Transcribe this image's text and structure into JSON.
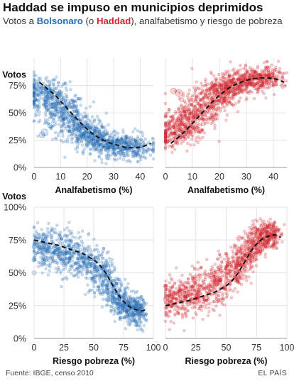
{
  "title": "Haddad se impuso en municipios deprimidos",
  "subtitle": {
    "prefix": "Votos a ",
    "bolsonaro": "Bolsonaro",
    "middle": " (o ",
    "haddad": "Haddad",
    "suffix": "), analfabetismo y riesgo de pobreza"
  },
  "footer": {
    "source": "Fuente: IBGE, censo 2010",
    "brand": "EL PAÍS"
  },
  "colors": {
    "bolsonaro": "#2a6fb5",
    "haddad": "#d1262e",
    "trend": "#111111",
    "grid": "#e4e4e4"
  },
  "chart_data": [
    {
      "type": "scatter",
      "candidate": "bolsonaro",
      "xlabel": "Analfabetismo (%)",
      "ylabel": "Votos",
      "xlim": [
        0,
        45
      ],
      "ylim": [
        0,
        100
      ],
      "xticks": [
        0,
        10,
        20,
        30,
        40
      ],
      "yticks": [
        0,
        25,
        50,
        75
      ],
      "yticklabels": [
        "0%",
        "25%",
        "50%",
        "75%"
      ],
      "trend": [
        [
          2,
          78
        ],
        [
          5,
          72
        ],
        [
          8,
          66
        ],
        [
          11,
          58
        ],
        [
          14,
          50
        ],
        [
          17,
          42
        ],
        [
          20,
          35
        ],
        [
          23,
          29
        ],
        [
          26,
          25
        ],
        [
          29,
          22
        ],
        [
          32,
          20
        ],
        [
          35,
          18
        ],
        [
          38,
          18
        ],
        [
          41,
          19
        ],
        [
          44,
          22
        ]
      ],
      "cloud": [
        [
          2,
          70,
          6,
          10
        ],
        [
          5,
          65,
          7,
          11
        ],
        [
          8,
          58,
          7,
          12
        ],
        [
          11,
          50,
          7,
          12
        ],
        [
          14,
          43,
          7,
          12
        ],
        [
          17,
          36,
          6,
          11
        ],
        [
          20,
          30,
          5,
          10
        ],
        [
          23,
          26,
          5,
          9
        ],
        [
          27,
          22,
          5,
          8
        ],
        [
          31,
          20,
          5,
          8
        ],
        [
          35,
          19,
          6,
          8
        ],
        [
          39,
          18,
          6,
          8
        ]
      ],
      "outliers": [
        [
          4,
          32,
          5
        ],
        [
          3,
          30,
          4
        ],
        [
          14,
          60,
          3
        ],
        [
          6,
          38,
          3
        ]
      ]
    },
    {
      "type": "scatter",
      "candidate": "haddad",
      "xlabel": "Analfabetismo (%)",
      "ylabel": "",
      "xlim": [
        0,
        45
      ],
      "ylim": [
        0,
        100
      ],
      "xticks": [
        0,
        10,
        20,
        30,
        40
      ],
      "yticks": [
        0,
        25,
        50,
        75
      ],
      "yticklabels": [
        "",
        "",
        "",
        ""
      ],
      "trend": [
        [
          2,
          22
        ],
        [
          5,
          28
        ],
        [
          8,
          35
        ],
        [
          11,
          43
        ],
        [
          14,
          51
        ],
        [
          17,
          59
        ],
        [
          20,
          66
        ],
        [
          23,
          72
        ],
        [
          26,
          76
        ],
        [
          29,
          79
        ],
        [
          32,
          81
        ],
        [
          35,
          82
        ],
        [
          38,
          82
        ],
        [
          41,
          81
        ],
        [
          44,
          78
        ]
      ],
      "cloud": [
        [
          2,
          30,
          6,
          10
        ],
        [
          5,
          35,
          7,
          11
        ],
        [
          8,
          42,
          7,
          12
        ],
        [
          11,
          50,
          7,
          12
        ],
        [
          14,
          57,
          7,
          12
        ],
        [
          17,
          63,
          6,
          11
        ],
        [
          20,
          69,
          5,
          10
        ],
        [
          23,
          74,
          5,
          9
        ],
        [
          27,
          78,
          5,
          8
        ],
        [
          31,
          80,
          5,
          8
        ],
        [
          35,
          81,
          6,
          8
        ],
        [
          39,
          82,
          6,
          8
        ]
      ],
      "outliers": [
        [
          5,
          68,
          5
        ],
        [
          3,
          70,
          4
        ],
        [
          14,
          40,
          3
        ],
        [
          6,
          62,
          3
        ]
      ]
    },
    {
      "type": "scatter",
      "candidate": "bolsonaro",
      "xlabel": "Riesgo pobreza (%)",
      "ylabel": "Votos",
      "xlim": [
        0,
        100
      ],
      "ylim": [
        0,
        100
      ],
      "xticks": [
        0,
        25,
        50,
        75,
        100
      ],
      "yticks": [
        0,
        25,
        50,
        75,
        100
      ],
      "yticklabels": [
        "0%",
        "25%",
        "50%",
        "75%",
        "100%"
      ],
      "trend": [
        [
          0,
          75
        ],
        [
          10,
          73
        ],
        [
          20,
          71
        ],
        [
          30,
          68
        ],
        [
          40,
          65
        ],
        [
          50,
          60
        ],
        [
          55,
          56
        ],
        [
          60,
          50
        ],
        [
          65,
          42
        ],
        [
          70,
          34
        ],
        [
          75,
          28
        ],
        [
          80,
          24
        ],
        [
          85,
          22
        ],
        [
          90,
          21
        ],
        [
          95,
          22
        ]
      ],
      "cloud": [
        [
          5,
          70,
          8,
          10
        ],
        [
          15,
          68,
          9,
          11
        ],
        [
          25,
          65,
          9,
          12
        ],
        [
          35,
          62,
          9,
          12
        ],
        [
          45,
          57,
          8,
          12
        ],
        [
          55,
          50,
          8,
          12
        ],
        [
          62,
          42,
          6,
          11
        ],
        [
          70,
          32,
          6,
          10
        ],
        [
          76,
          26,
          6,
          9
        ],
        [
          82,
          22,
          6,
          8
        ],
        [
          88,
          20,
          5,
          8
        ]
      ],
      "outliers": [
        [
          0,
          50,
          3
        ],
        [
          0,
          60,
          3
        ],
        [
          0,
          70,
          3
        ]
      ]
    },
    {
      "type": "scatter",
      "candidate": "haddad",
      "xlabel": "Riesgo pobreza (%)",
      "ylabel": "",
      "xlim": [
        0,
        100
      ],
      "ylim": [
        0,
        100
      ],
      "xticks": [
        0,
        25,
        50,
        75,
        100
      ],
      "yticks": [
        0,
        25,
        50,
        75,
        100
      ],
      "yticklabels": [
        "",
        "",
        "",
        "",
        ""
      ],
      "trend": [
        [
          0,
          25
        ],
        [
          10,
          27
        ],
        [
          20,
          29
        ],
        [
          30,
          32
        ],
        [
          40,
          35
        ],
        [
          50,
          40
        ],
        [
          55,
          44
        ],
        [
          60,
          50
        ],
        [
          65,
          58
        ],
        [
          70,
          66
        ],
        [
          75,
          72
        ],
        [
          80,
          76
        ],
        [
          85,
          78
        ],
        [
          90,
          79
        ],
        [
          95,
          77
        ]
      ],
      "cloud": [
        [
          5,
          30,
          8,
          10
        ],
        [
          15,
          32,
          9,
          11
        ],
        [
          25,
          35,
          9,
          12
        ],
        [
          35,
          38,
          9,
          12
        ],
        [
          45,
          43,
          8,
          12
        ],
        [
          55,
          50,
          8,
          12
        ],
        [
          62,
          58,
          6,
          11
        ],
        [
          70,
          68,
          6,
          10
        ],
        [
          76,
          74,
          6,
          9
        ],
        [
          82,
          78,
          6,
          8
        ],
        [
          88,
          80,
          5,
          8
        ]
      ],
      "outliers": [
        [
          0,
          40,
          3
        ],
        [
          0,
          30,
          3
        ]
      ]
    }
  ]
}
